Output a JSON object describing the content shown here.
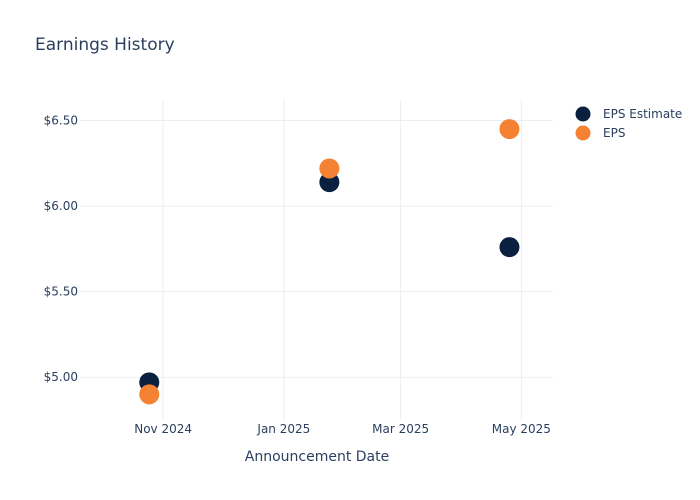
{
  "chart_data": {
    "type": "scatter",
    "title": "Earnings History",
    "xlabel": "Announcement Date",
    "ylabel": "",
    "x_axis_type": "date",
    "xlim": [
      "2024-09-20",
      "2025-05-17"
    ],
    "ylim": [
      4.75,
      6.62
    ],
    "x_ticks": [
      {
        "date": "2024-11-01",
        "label": "Nov 2024"
      },
      {
        "date": "2025-01-01",
        "label": "Jan 2025"
      },
      {
        "date": "2025-03-01",
        "label": "Mar 2025"
      },
      {
        "date": "2025-05-01",
        "label": "May 2025"
      }
    ],
    "y_ticks": [
      {
        "value": 5.0,
        "label": "$5.00"
      },
      {
        "value": 5.5,
        "label": "$5.50"
      },
      {
        "value": 6.0,
        "label": "$6.00"
      },
      {
        "value": 6.5,
        "label": "$6.50"
      }
    ],
    "grid": true,
    "legend_position": "top-right",
    "series": [
      {
        "name": "EPS Estimate",
        "color": "#0b1f3f",
        "points": [
          {
            "x": "2024-10-25",
            "y": 4.97
          },
          {
            "x": "2025-01-24",
            "y": 6.14
          },
          {
            "x": "2025-04-25",
            "y": 5.76
          }
        ]
      },
      {
        "name": "EPS",
        "color": "#f58232",
        "points": [
          {
            "x": "2024-10-25",
            "y": 4.9
          },
          {
            "x": "2025-01-24",
            "y": 6.22
          },
          {
            "x": "2025-04-25",
            "y": 6.45
          }
        ]
      }
    ]
  }
}
